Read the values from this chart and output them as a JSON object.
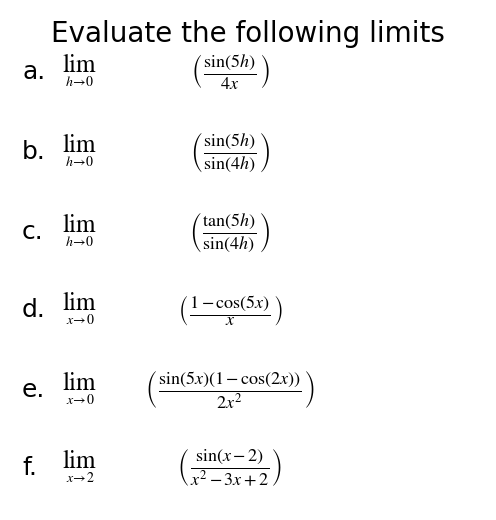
{
  "title": "Evaluate the following limits",
  "background_color": "#ffffff",
  "text_color": "#000000",
  "items": [
    {
      "label": "a.",
      "under": "h\\!\\rightarrow\\!0",
      "expr": "\\dfrac{\\sin(5h)}{4x}"
    },
    {
      "label": "b.",
      "under": "h\\!\\rightarrow\\!0",
      "expr": "\\dfrac{\\sin(5h)}{\\sin(4h)}"
    },
    {
      "label": "c.",
      "under": "h\\!\\rightarrow\\!0",
      "expr": "\\dfrac{\\tan(5h)}{\\sin(4h)}"
    },
    {
      "label": "d.",
      "under": "x\\!\\rightarrow\\!0",
      "expr": "\\dfrac{1-\\cos(5x)}{x}"
    },
    {
      "label": "e.",
      "under": "x\\!\\rightarrow\\!0",
      "expr": "\\dfrac{\\sin(5x)(1-\\cos(2x))}{2x^2}"
    },
    {
      "label": "f.",
      "under": "x\\!\\rightarrow\\!2",
      "expr": "\\dfrac{\\sin(x-2)}{x^2-3x+2}"
    }
  ]
}
